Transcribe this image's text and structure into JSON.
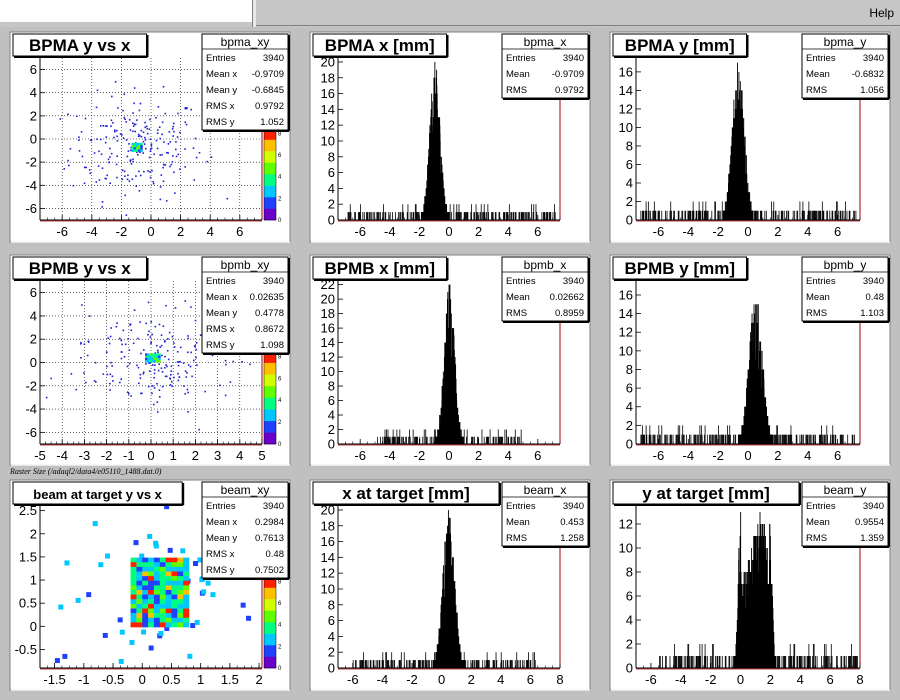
{
  "menu": {
    "help": "Help"
  },
  "caption": "Raster Size (/adaql2/data4/e05110_1488.dat.0)",
  "colors": {
    "palette": [
      "#6a00c8",
      "#2040ff",
      "#00c8ff",
      "#00ff80",
      "#60ff00",
      "#d0ff00",
      "#ffc000",
      "#ff2000"
    ]
  },
  "chart_data": [
    {
      "id": "bpma_xy",
      "type": "heatmap",
      "title": "BPMA y vs x",
      "xlim": [
        -7.5,
        7.5
      ],
      "ylim": [
        -7,
        7
      ],
      "xticks": [
        "-6",
        "-4",
        "-2",
        "0",
        "2",
        "4",
        "6"
      ],
      "yticks": [
        "-6",
        "-4",
        "-2",
        "0",
        "2",
        "4",
        "6"
      ],
      "center": [
        -0.97,
        -0.68
      ],
      "core": [
        0.7,
        0.7
      ],
      "spread": [
        4.5,
        4.5
      ],
      "grid": true,
      "points": 220,
      "palette_ticks": [
        "0",
        "2",
        "4",
        "6",
        "8"
      ],
      "stats": {
        "name": "bpma_xy",
        "rows": [
          [
            "Entries",
            "3940"
          ],
          [
            "Mean x",
            "-0.9709"
          ],
          [
            "Mean y",
            "-0.6845"
          ],
          [
            "RMS x",
            "0.9792"
          ],
          [
            "RMS y",
            "1.052"
          ]
        ]
      }
    },
    {
      "id": "bpma_x",
      "type": "bar",
      "title": "BPMA x [mm]",
      "xlim": [
        -7.5,
        7.5
      ],
      "ylim": [
        0,
        20.5
      ],
      "xticks": [
        "-6",
        "-4",
        "-2",
        "0",
        "2",
        "4",
        "6"
      ],
      "yticks": [
        "0",
        "2",
        "4",
        "6",
        "8",
        "10",
        "12",
        "14",
        "16",
        "18",
        "20"
      ],
      "peak_center": -0.97,
      "peak_width": 0.35,
      "peak_max": 20,
      "bg_range": [
        -7.2,
        7.2
      ],
      "stats": {
        "name": "bpma_x",
        "rows": [
          [
            "Entries",
            "3940"
          ],
          [
            "Mean",
            "-0.9709"
          ],
          [
            "RMS",
            "0.9792"
          ]
        ]
      }
    },
    {
      "id": "bpma_y",
      "type": "bar",
      "title": "BPMA y [mm]",
      "xlim": [
        -7.5,
        7.5
      ],
      "ylim": [
        0,
        17.5
      ],
      "xticks": [
        "-6",
        "-4",
        "-2",
        "0",
        "2",
        "4",
        "6"
      ],
      "yticks": [
        "0",
        "2",
        "4",
        "6",
        "8",
        "10",
        "12",
        "14",
        "16"
      ],
      "peak_center": -0.68,
      "peak_width": 0.4,
      "peak_max": 17,
      "bg_range": [
        -7.2,
        7.2
      ],
      "stats": {
        "name": "bpma_y",
        "rows": [
          [
            "Entries",
            "3940"
          ],
          [
            "Mean",
            "-0.6832"
          ],
          [
            "RMS",
            "1.056"
          ]
        ]
      }
    },
    {
      "id": "bpmb_xy",
      "type": "heatmap",
      "title": "BPMB y vs x",
      "xlim": [
        -5,
        5
      ],
      "ylim": [
        -7,
        7
      ],
      "xticks": [
        "-5",
        "-4",
        "-3",
        "-2",
        "-1",
        "0",
        "1",
        "2",
        "3",
        "4",
        "5"
      ],
      "yticks": [
        "-6",
        "-4",
        "-2",
        "0",
        "2",
        "4",
        "6"
      ],
      "center": [
        0.03,
        0.48
      ],
      "core": [
        0.6,
        0.6
      ],
      "spread": [
        3.2,
        4.5
      ],
      "grid": true,
      "points": 200,
      "palette_ticks": [
        "0",
        "2",
        "4",
        "6",
        "8"
      ],
      "stats": {
        "name": "bpmb_xy",
        "rows": [
          [
            "Entries",
            "3940"
          ],
          [
            "Mean x",
            "0.02635"
          ],
          [
            "Mean y",
            "0.4778"
          ],
          [
            "RMS x",
            "0.8672"
          ],
          [
            "RMS y",
            "1.098"
          ]
        ]
      }
    },
    {
      "id": "bpmb_x",
      "type": "bar",
      "title": "BPMB x [mm]",
      "xlim": [
        -7.5,
        7.5
      ],
      "ylim": [
        0,
        22.5
      ],
      "xticks": [
        "-6",
        "-4",
        "-2",
        "0",
        "2",
        "4",
        "6"
      ],
      "yticks": [
        "0",
        "2",
        "4",
        "6",
        "8",
        "10",
        "12",
        "14",
        "16",
        "18",
        "20",
        "22"
      ],
      "peak_center": 0.0,
      "peak_width": 0.35,
      "peak_max": 22,
      "bg_range": [
        -5,
        5
      ],
      "stats": {
        "name": "bpmb_x",
        "rows": [
          [
            "Entries",
            "3940"
          ],
          [
            "Mean",
            "0.02662"
          ],
          [
            "RMS",
            "0.8959"
          ]
        ]
      }
    },
    {
      "id": "bpmb_y",
      "type": "bar",
      "title": "BPMB y [mm]",
      "xlim": [
        -7.5,
        7.5
      ],
      "ylim": [
        0,
        17.5
      ],
      "xticks": [
        "-6",
        "-4",
        "-2",
        "0",
        "2",
        "4",
        "6"
      ],
      "yticks": [
        "0",
        "2",
        "4",
        "6",
        "8",
        "10",
        "12",
        "14",
        "16"
      ],
      "peak_center": 0.48,
      "peak_width": 0.45,
      "peak_max": 16,
      "bg_range": [
        -7.2,
        7.2
      ],
      "stats": {
        "name": "bpmb_y",
        "rows": [
          [
            "Entries",
            "3940"
          ],
          [
            "Mean",
            "0.48"
          ],
          [
            "RMS",
            "1.103"
          ]
        ]
      }
    },
    {
      "id": "beam_xy",
      "type": "heatmap",
      "title": "beam at target y vs x",
      "xlim": [
        -1.75,
        2.05
      ],
      "ylim": [
        -0.9,
        2.6
      ],
      "xticks": [
        "-1.5",
        "-1",
        "-0.5",
        "0",
        "0.5",
        "1",
        "1.5",
        "2"
      ],
      "yticks": [
        "-0.5",
        "0",
        "0.5",
        "1",
        "1.5",
        "2",
        "2.5"
      ],
      "center": [
        0.3,
        0.76
      ],
      "core": [
        1.0,
        1.45
      ],
      "spread": [
        1.6,
        1.4
      ],
      "grid": false,
      "points": 60,
      "box": true,
      "palette_ticks": [
        "0",
        "2",
        "4",
        "6",
        "8"
      ],
      "stats": {
        "name": "beam_xy",
        "rows": [
          [
            "Entries",
            "3940"
          ],
          [
            "Mean x",
            "0.2984"
          ],
          [
            "Mean y",
            "0.7613"
          ],
          [
            "RMS x",
            "0.48"
          ],
          [
            "RMS y",
            "0.7502"
          ]
        ]
      }
    },
    {
      "id": "beam_x",
      "type": "bar",
      "title": "x at target [mm]",
      "xlim": [
        -7,
        8
      ],
      "ylim": [
        0,
        20.5
      ],
      "xticks": [
        "-6",
        "-4",
        "-2",
        "0",
        "2",
        "4",
        "6",
        "8"
      ],
      "yticks": [
        "0",
        "2",
        "4",
        "6",
        "8",
        "10",
        "12",
        "14",
        "16",
        "18",
        "20"
      ],
      "peak_center": 0.45,
      "peak_width": 0.4,
      "peak_max": 20,
      "bg_range": [
        -6,
        6.3
      ],
      "stats": {
        "name": "beam_x",
        "rows": [
          [
            "Entries",
            "3940"
          ],
          [
            "Mean",
            "0.453"
          ],
          [
            "RMS",
            "1.258"
          ]
        ]
      }
    },
    {
      "id": "beam_y",
      "type": "bar",
      "title": "y at target [mm]",
      "xlim": [
        -7,
        8
      ],
      "ylim": [
        0,
        13.5
      ],
      "xticks": [
        "-6",
        "-4",
        "-2",
        "0",
        "2",
        "4",
        "6",
        "8"
      ],
      "yticks": [
        "0",
        "2",
        "4",
        "6",
        "8",
        "10",
        "12"
      ],
      "peak_center": 0.95,
      "peak_width": 0.6,
      "peak_max": 13,
      "bg_range": [
        -5.5,
        7.8
      ],
      "plateau": true,
      "stats": {
        "name": "beam_y",
        "rows": [
          [
            "Entries",
            "3940"
          ],
          [
            "Mean",
            "0.9554"
          ],
          [
            "RMS",
            "1.359"
          ]
        ]
      }
    }
  ]
}
